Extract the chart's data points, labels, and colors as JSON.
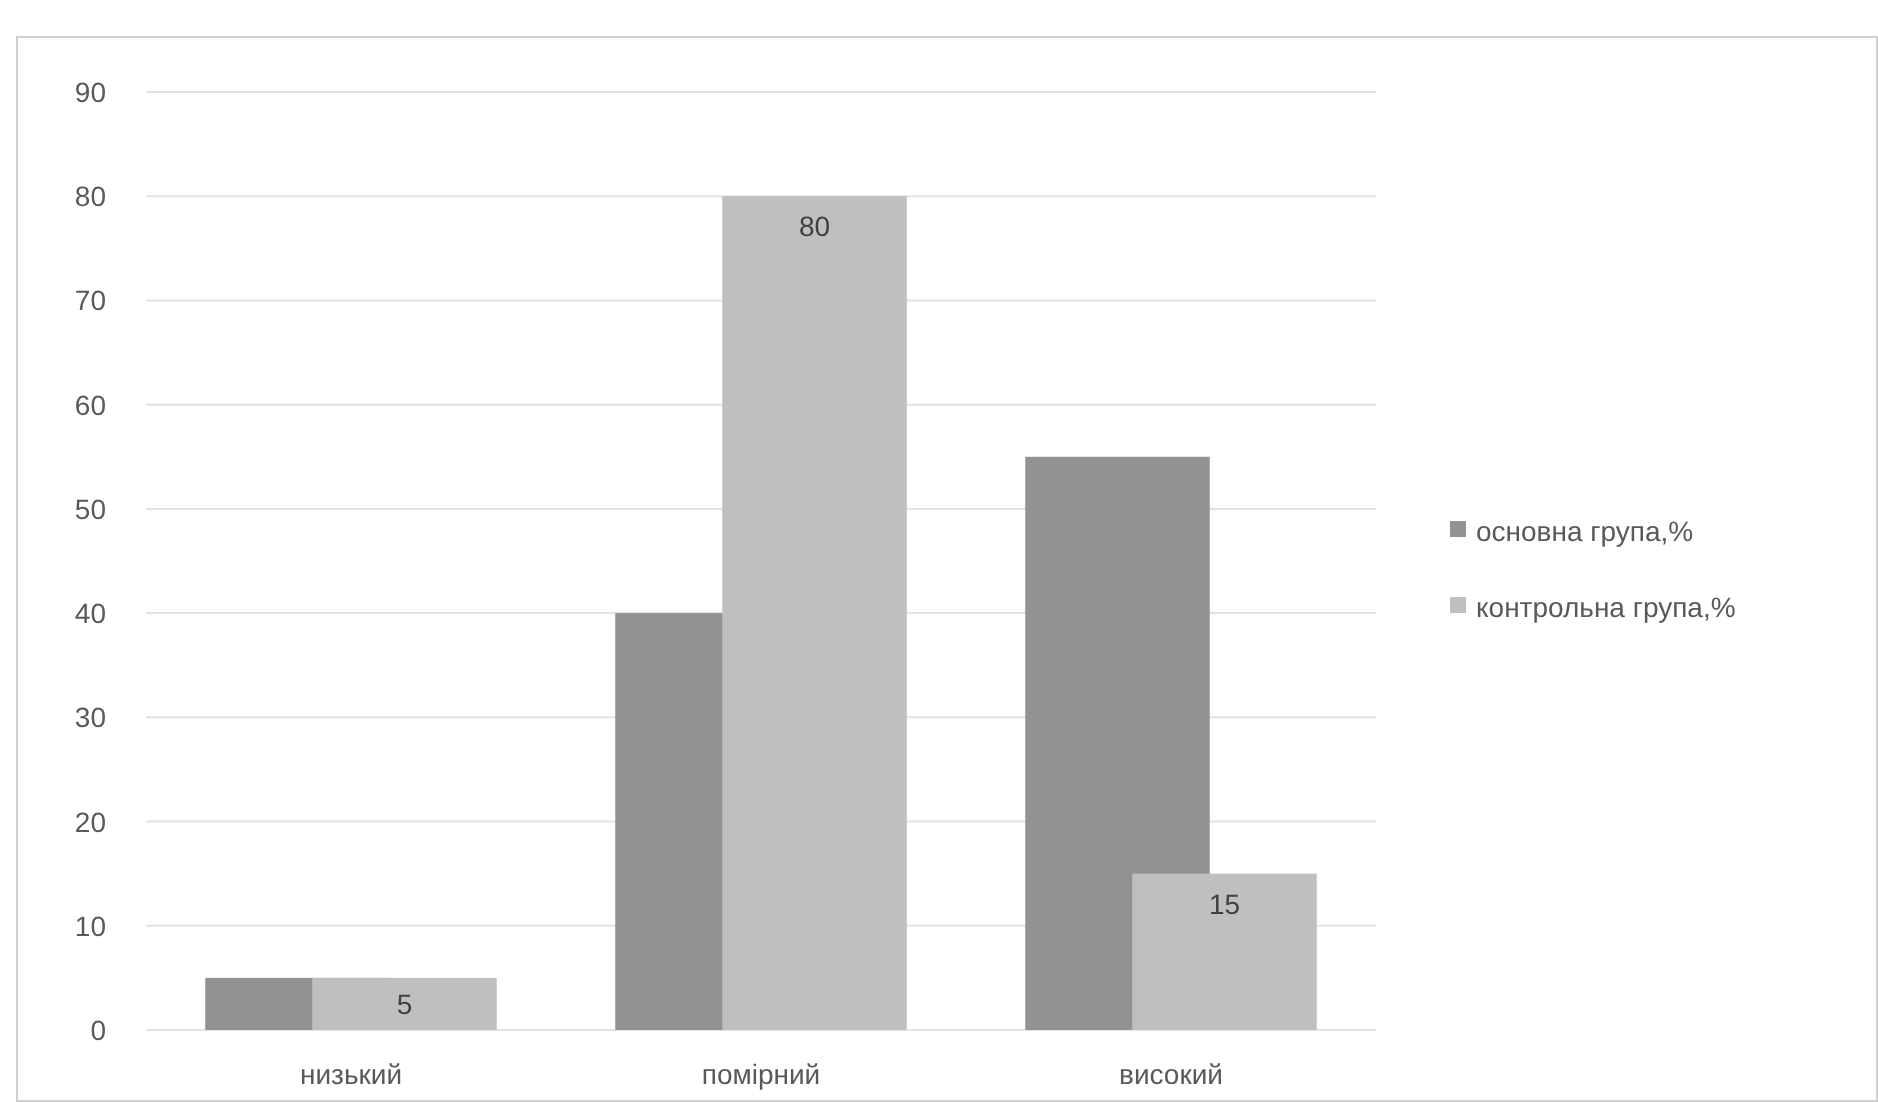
{
  "chart_data": {
    "type": "bar",
    "categories": [
      "низький",
      "помірний",
      "високий"
    ],
    "series": [
      {
        "name": "основна група,%",
        "color": "#929292",
        "values": [
          5,
          40,
          55
        ]
      },
      {
        "name": "контрольна група,%",
        "color": "#bfbfbf",
        "values": [
          5,
          80,
          15
        ],
        "value_labels": [
          "5",
          "80",
          "15"
        ]
      }
    ],
    "ylim": [
      0,
      90
    ],
    "yticks": [
      0,
      10,
      20,
      30,
      40,
      50,
      60,
      70,
      80,
      90
    ],
    "grid": "y",
    "legend": "right"
  }
}
